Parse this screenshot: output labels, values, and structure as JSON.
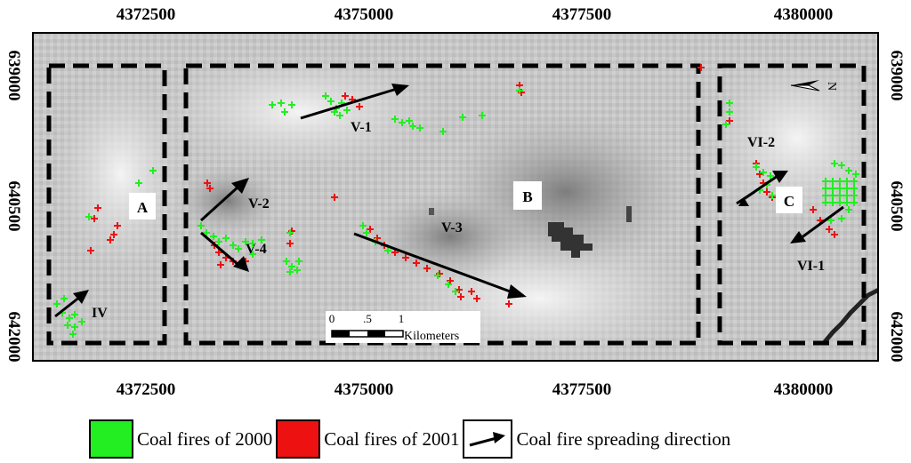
{
  "x_ticks": [
    "4372500",
    "4375000",
    "4377500",
    "4380000"
  ],
  "y_ticks": [
    "639000",
    "640500",
    "642000"
  ],
  "zones": [
    {
      "label": "A"
    },
    {
      "label": "B"
    },
    {
      "label": "C"
    }
  ],
  "fire_labels": [
    "V-1",
    "V-2",
    "V-3",
    "V-4",
    "VI-1",
    "VI-2",
    "IV"
  ],
  "scale_bar": {
    "ticks": [
      "0",
      ".5",
      "1"
    ],
    "unit": "Kilometers"
  },
  "north_label": "N",
  "legend": {
    "fires_2000": "Coal fires of 2000",
    "fires_2001": "Coal fires of 2001",
    "direction": "Coal fire spreading direction"
  },
  "colors": {
    "fires_2000": "#22ee22",
    "fires_2001": "#ee1111"
  }
}
